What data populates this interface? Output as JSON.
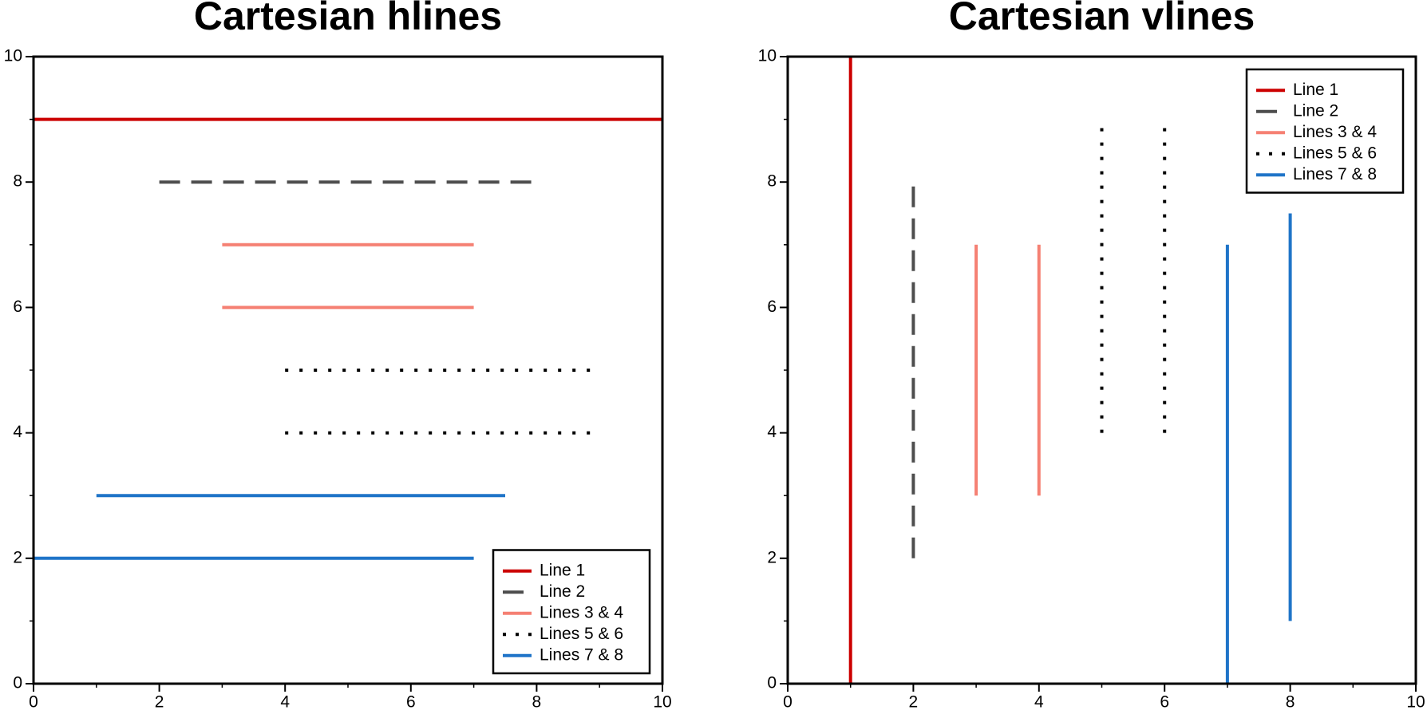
{
  "chart_data": [
    {
      "type": "hlines",
      "title": "Cartesian hlines",
      "xlim": [
        0,
        10
      ],
      "ylim": [
        0,
        10
      ],
      "xticks": [
        0,
        2,
        4,
        6,
        8,
        10
      ],
      "yticks": [
        0,
        2,
        4,
        6,
        8,
        10
      ],
      "minor_xticks": [
        1,
        3,
        5,
        7,
        9
      ],
      "minor_yticks": [
        1,
        3,
        5,
        7,
        9
      ],
      "legend": "bottom right",
      "series": [
        {
          "name": "Line 1",
          "color": "#cc0000",
          "style": "solid",
          "lines": [
            {
              "y": 9,
              "xmin": 0,
              "xmax": 10
            }
          ]
        },
        {
          "name": "Line 2",
          "color": "#4d4d4d",
          "style": "dashed",
          "lines": [
            {
              "y": 8,
              "xmin": 2,
              "xmax": 8
            }
          ]
        },
        {
          "name": "Lines 3 & 4",
          "color": "#f58073",
          "style": "solid",
          "lines": [
            {
              "y": 7,
              "xmin": 3,
              "xmax": 7
            },
            {
              "y": 6,
              "xmin": 3,
              "xmax": 7
            }
          ]
        },
        {
          "name": "Lines 5 & 6",
          "color": "#000000",
          "style": "dotted",
          "lines": [
            {
              "y": 5,
              "xmin": 4,
              "xmax": 9
            },
            {
              "y": 4,
              "xmin": 4,
              "xmax": 9
            }
          ]
        },
        {
          "name": "Lines 7 & 8",
          "color": "#1f74c8",
          "style": "solid",
          "lines": [
            {
              "y": 3,
              "xmin": 1,
              "xmax": 7.5
            },
            {
              "y": 2,
              "xmin": 0,
              "xmax": 7
            }
          ]
        }
      ]
    },
    {
      "type": "vlines",
      "title": "Cartesian vlines",
      "xlim": [
        0,
        10
      ],
      "ylim": [
        0,
        10
      ],
      "xticks": [
        0,
        2,
        4,
        6,
        8,
        10
      ],
      "yticks": [
        0,
        2,
        4,
        6,
        8,
        10
      ],
      "minor_xticks": [
        1,
        3,
        5,
        7,
        9
      ],
      "minor_yticks": [
        1,
        3,
        5,
        7,
        9
      ],
      "legend": "top right",
      "series": [
        {
          "name": "Line 1",
          "color": "#cc0000",
          "style": "solid",
          "lines": [
            {
              "x": 1,
              "ymin": 0,
              "ymax": 10
            }
          ]
        },
        {
          "name": "Line 2",
          "color": "#4d4d4d",
          "style": "dashed",
          "lines": [
            {
              "x": 2,
              "ymin": 2,
              "ymax": 8
            }
          ]
        },
        {
          "name": "Lines 3 & 4",
          "color": "#f58073",
          "style": "solid",
          "lines": [
            {
              "x": 3,
              "ymin": 3,
              "ymax": 7
            },
            {
              "x": 4,
              "ymin": 3,
              "ymax": 7
            }
          ]
        },
        {
          "name": "Lines 5 & 6",
          "color": "#000000",
          "style": "dotted",
          "lines": [
            {
              "x": 5,
              "ymin": 4,
              "ymax": 9
            },
            {
              "x": 6,
              "ymin": 4,
              "ymax": 9
            }
          ]
        },
        {
          "name": "Lines 7 & 8",
          "color": "#1f74c8",
          "style": "solid",
          "lines": [
            {
              "x": 7,
              "ymin": 0,
              "ymax": 7
            },
            {
              "x": 8,
              "ymin": 1,
              "ymax": 7.5
            }
          ]
        }
      ]
    }
  ]
}
